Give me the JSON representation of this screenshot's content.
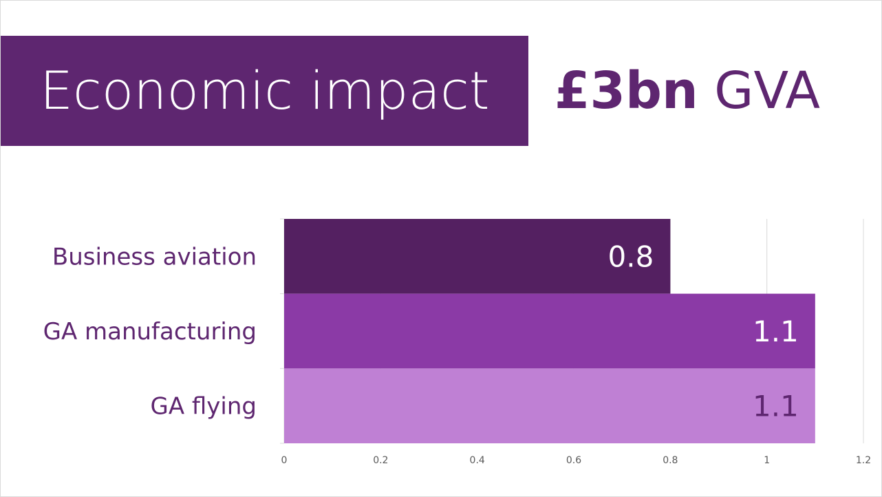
{
  "slide": {
    "title": "Economic impact",
    "headline_amount": "£3bn",
    "headline_unit": "GVA"
  },
  "colors": {
    "title_bg": "#5e2670",
    "text_accent": "#5e2670",
    "grid": "#d9d9d9"
  },
  "chart_data": {
    "type": "bar",
    "orientation": "horizontal",
    "categories": [
      "Business aviation",
      "GA manufacturing",
      "GA flying"
    ],
    "values": [
      0.8,
      1.1,
      1.1
    ],
    "data_labels": [
      "0.8",
      "1.1",
      "1.1"
    ],
    "bar_colors": [
      "#542061",
      "#8b3aa6",
      "#bf80d4"
    ],
    "label_colors": [
      "#ffffff",
      "#ffffff",
      "#5e2670"
    ],
    "xlim": [
      0,
      1.2
    ],
    "x_ticks": [
      0,
      0.2,
      0.4,
      0.6,
      0.8,
      1,
      1.2
    ],
    "x_tick_labels": [
      "0",
      "0.2",
      "0.4",
      "0.6",
      "0.8",
      "1",
      "1.2"
    ],
    "grid": true,
    "legend": "none"
  }
}
